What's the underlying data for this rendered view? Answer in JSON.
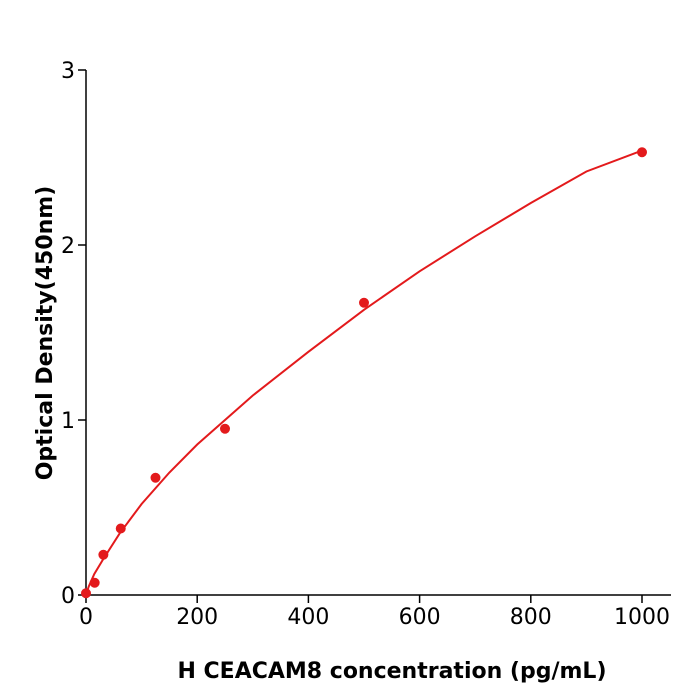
{
  "chart_data": {
    "type": "scatter",
    "title": "",
    "xlabel": "H  CEACAM8 concentration (pg/mL)",
    "ylabel": "Optical Density(450nm)",
    "xlim": [
      0,
      1050
    ],
    "ylim": [
      0,
      3
    ],
    "xticks": [
      "0",
      "200",
      "400",
      "600",
      "800",
      "1000"
    ],
    "yticks": [
      "0",
      "1",
      "2",
      "3"
    ],
    "grid": false,
    "color": "#e31a1c",
    "points": [
      {
        "x": 0,
        "y": 0.01
      },
      {
        "x": 15.6,
        "y": 0.07
      },
      {
        "x": 31.25,
        "y": 0.23
      },
      {
        "x": 62.5,
        "y": 0.38
      },
      {
        "x": 125,
        "y": 0.67
      },
      {
        "x": 250,
        "y": 0.95
      },
      {
        "x": 500,
        "y": 1.67
      },
      {
        "x": 1000,
        "y": 2.53
      }
    ],
    "fit_curve": [
      {
        "x": 0,
        "y": 0.0
      },
      {
        "x": 5,
        "y": 0.05
      },
      {
        "x": 15,
        "y": 0.12
      },
      {
        "x": 30,
        "y": 0.2
      },
      {
        "x": 60,
        "y": 0.35
      },
      {
        "x": 100,
        "y": 0.52
      },
      {
        "x": 150,
        "y": 0.7
      },
      {
        "x": 200,
        "y": 0.86
      },
      {
        "x": 300,
        "y": 1.14
      },
      {
        "x": 400,
        "y": 1.39
      },
      {
        "x": 500,
        "y": 1.63
      },
      {
        "x": 600,
        "y": 1.85
      },
      {
        "x": 700,
        "y": 2.05
      },
      {
        "x": 800,
        "y": 2.24
      },
      {
        "x": 900,
        "y": 2.42
      },
      {
        "x": 1000,
        "y": 2.54
      }
    ]
  }
}
